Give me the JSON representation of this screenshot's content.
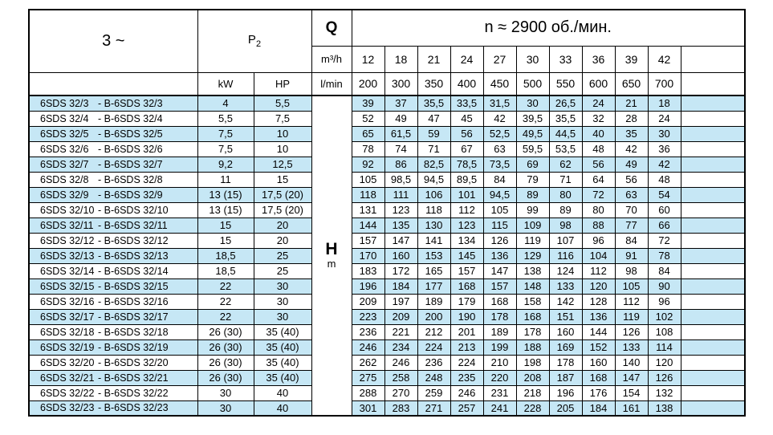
{
  "table": {
    "phase_label": "3 ~",
    "p2": {
      "base": "P",
      "sub": "2"
    },
    "kw_label": "kW",
    "hp_label": "HP",
    "q_label": "Q",
    "q_unit_top": "m³/h",
    "q_unit_bottom": "l/min",
    "speed_label": "n ≈ 2900 об./мин.",
    "h_label": "H",
    "h_unit": "m",
    "flows_m3h": [
      "12",
      "18",
      "21",
      "24",
      "27",
      "30",
      "33",
      "36",
      "39",
      "42"
    ],
    "flows_lmin": [
      "200",
      "300",
      "350",
      "400",
      "450",
      "500",
      "550",
      "600",
      "650",
      "700"
    ],
    "rows": [
      {
        "name": "6SDS 32/3",
        "alt": "- B-6SDS 32/3",
        "kw": "4",
        "hp": "5,5",
        "h": [
          "39",
          "37",
          "35,5",
          "33,5",
          "31,5",
          "30",
          "26,5",
          "24",
          "21",
          "18"
        ]
      },
      {
        "name": "6SDS 32/4",
        "alt": "- B-6SDS 32/4",
        "kw": "5,5",
        "hp": "7,5",
        "h": [
          "52",
          "49",
          "47",
          "45",
          "42",
          "39,5",
          "35,5",
          "32",
          "28",
          "24"
        ]
      },
      {
        "name": "6SDS 32/5",
        "alt": "- B-6SDS 32/5",
        "kw": "7,5",
        "hp": "10",
        "h": [
          "65",
          "61,5",
          "59",
          "56",
          "52,5",
          "49,5",
          "44,5",
          "40",
          "35",
          "30"
        ]
      },
      {
        "name": "6SDS 32/6",
        "alt": "- B-6SDS 32/6",
        "kw": "7,5",
        "hp": "10",
        "h": [
          "78",
          "74",
          "71",
          "67",
          "63",
          "59,5",
          "53,5",
          "48",
          "42",
          "36"
        ]
      },
      {
        "name": "6SDS 32/7",
        "alt": "- B-6SDS 32/7",
        "kw": "9,2",
        "hp": "12,5",
        "h": [
          "92",
          "86",
          "82,5",
          "78,5",
          "73,5",
          "69",
          "62",
          "56",
          "49",
          "42"
        ]
      },
      {
        "name": "6SDS 32/8",
        "alt": "- B-6SDS 32/8",
        "kw": "11",
        "hp": "15",
        "h": [
          "105",
          "98,5",
          "94,5",
          "89,5",
          "84",
          "79",
          "71",
          "64",
          "56",
          "48"
        ]
      },
      {
        "name": "6SDS 32/9",
        "alt": "- B-6SDS 32/9",
        "kw": "13 (15)",
        "hp": "17,5 (20)",
        "h": [
          "118",
          "111",
          "106",
          "101",
          "94,5",
          "89",
          "80",
          "72",
          "63",
          "54"
        ]
      },
      {
        "name": "6SDS 32/10",
        "alt": "- B-6SDS 32/10",
        "kw": "13 (15)",
        "hp": "17,5 (20)",
        "h": [
          "131",
          "123",
          "118",
          "112",
          "105",
          "99",
          "89",
          "80",
          "70",
          "60"
        ]
      },
      {
        "name": "6SDS 32/11",
        "alt": "- B-6SDS 32/11",
        "kw": "15",
        "hp": "20",
        "h": [
          "144",
          "135",
          "130",
          "123",
          "115",
          "109",
          "98",
          "88",
          "77",
          "66"
        ]
      },
      {
        "name": "6SDS 32/12",
        "alt": "- B-6SDS 32/12",
        "kw": "15",
        "hp": "20",
        "h": [
          "157",
          "147",
          "141",
          "134",
          "126",
          "119",
          "107",
          "96",
          "84",
          "72"
        ]
      },
      {
        "name": "6SDS 32/13",
        "alt": "- B-6SDS 32/13",
        "kw": "18,5",
        "hp": "25",
        "h": [
          "170",
          "160",
          "153",
          "145",
          "136",
          "129",
          "116",
          "104",
          "91",
          "78"
        ]
      },
      {
        "name": "6SDS 32/14",
        "alt": "- B-6SDS 32/14",
        "kw": "18,5",
        "hp": "25",
        "h": [
          "183",
          "172",
          "165",
          "157",
          "147",
          "138",
          "124",
          "112",
          "98",
          "84"
        ]
      },
      {
        "name": "6SDS 32/15",
        "alt": "- B-6SDS 32/15",
        "kw": "22",
        "hp": "30",
        "h": [
          "196",
          "184",
          "177",
          "168",
          "157",
          "148",
          "133",
          "120",
          "105",
          "90"
        ]
      },
      {
        "name": "6SDS 32/16",
        "alt": "- B-6SDS 32/16",
        "kw": "22",
        "hp": "30",
        "h": [
          "209",
          "197",
          "189",
          "179",
          "168",
          "158",
          "142",
          "128",
          "112",
          "96"
        ]
      },
      {
        "name": "6SDS 32/17",
        "alt": "- B-6SDS 32/17",
        "kw": "22",
        "hp": "30",
        "h": [
          "223",
          "209",
          "200",
          "190",
          "178",
          "168",
          "151",
          "136",
          "119",
          "102"
        ]
      },
      {
        "name": "6SDS 32/18",
        "alt": "- B-6SDS 32/18",
        "kw": "26 (30)",
        "hp": "35 (40)",
        "h": [
          "236",
          "221",
          "212",
          "201",
          "189",
          "178",
          "160",
          "144",
          "126",
          "108"
        ]
      },
      {
        "name": "6SDS 32/19",
        "alt": "- B-6SDS 32/19",
        "kw": "26 (30)",
        "hp": "35 (40)",
        "h": [
          "246",
          "234",
          "224",
          "213",
          "199",
          "188",
          "169",
          "152",
          "133",
          "114"
        ]
      },
      {
        "name": "6SDS 32/20",
        "alt": "- B-6SDS 32/20",
        "kw": "26 (30)",
        "hp": "35 (40)",
        "h": [
          "262",
          "246",
          "236",
          "224",
          "210",
          "198",
          "178",
          "160",
          "140",
          "120"
        ]
      },
      {
        "name": "6SDS 32/21",
        "alt": "- B-6SDS 32/21",
        "kw": "26 (30)",
        "hp": "35 (40)",
        "h": [
          "275",
          "258",
          "248",
          "235",
          "220",
          "208",
          "187",
          "168",
          "147",
          "126"
        ]
      },
      {
        "name": "6SDS 32/22",
        "alt": "- B-6SDS 32/22",
        "kw": "30",
        "hp": "40",
        "h": [
          "288",
          "270",
          "259",
          "246",
          "231",
          "218",
          "196",
          "176",
          "154",
          "132"
        ]
      },
      {
        "name": "6SDS 32/23",
        "alt": "- B-6SDS 32/23",
        "kw": "30",
        "hp": "40",
        "h": [
          "301",
          "283",
          "271",
          "257",
          "241",
          "228",
          "205",
          "184",
          "161",
          "138"
        ]
      }
    ]
  },
  "colors": {
    "row_highlight": "#c6e7f5",
    "border": "#000000"
  }
}
